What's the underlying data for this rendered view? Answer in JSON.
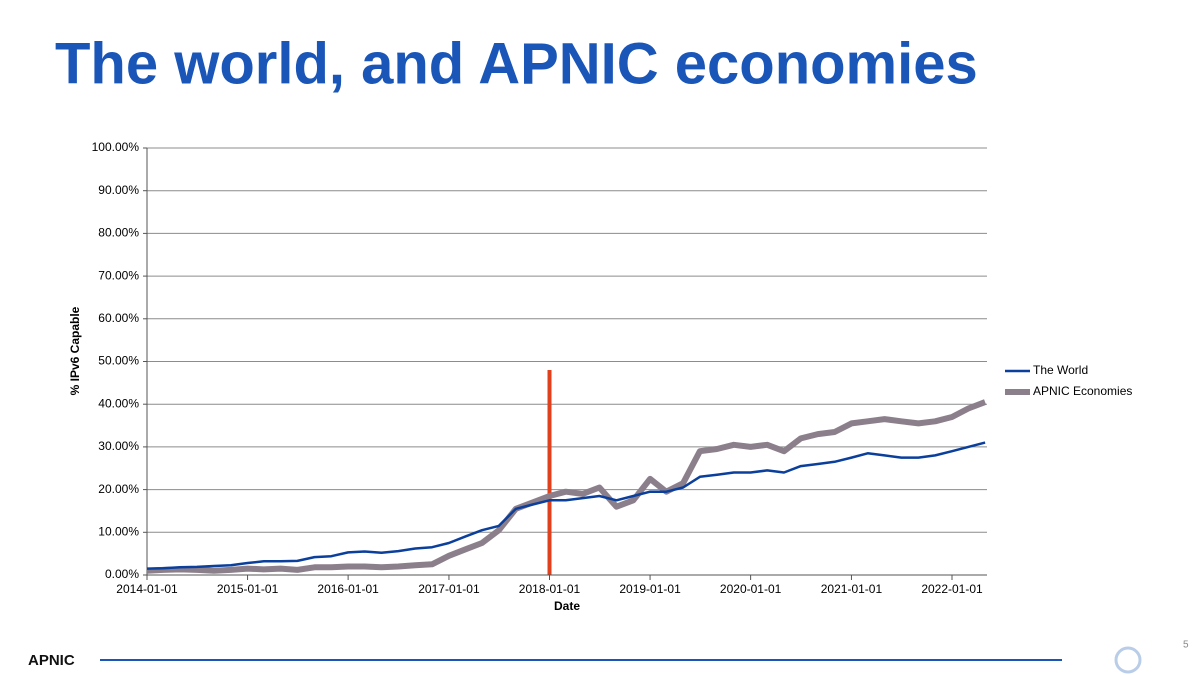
{
  "page_title": "The world, and APNIC economies",
  "logo": "APNIC",
  "page_number": "5",
  "chart_data": {
    "type": "line",
    "x_label": "Date",
    "y_label": "% IPv6 Capable",
    "x": [
      "2014-01-01",
      "2014-03-01",
      "2014-05-01",
      "2014-07-01",
      "2014-09-01",
      "2014-11-01",
      "2015-01-01",
      "2015-03-01",
      "2015-05-01",
      "2015-07-01",
      "2015-09-01",
      "2015-11-01",
      "2016-01-01",
      "2016-03-01",
      "2016-05-01",
      "2016-07-01",
      "2016-09-01",
      "2016-11-01",
      "2017-01-01",
      "2017-03-01",
      "2017-05-01",
      "2017-07-01",
      "2017-09-01",
      "2017-11-01",
      "2018-01-01",
      "2018-03-01",
      "2018-05-01",
      "2018-07-01",
      "2018-09-01",
      "2018-11-01",
      "2019-01-01",
      "2019-03-01",
      "2019-05-01",
      "2019-07-01",
      "2019-09-01",
      "2019-11-01",
      "2020-01-01",
      "2020-03-01",
      "2020-05-01",
      "2020-07-01",
      "2020-09-01",
      "2020-11-01",
      "2021-01-01",
      "2021-03-01",
      "2021-05-01",
      "2021-07-01",
      "2021-09-01",
      "2021-11-01",
      "2022-01-01",
      "2022-03-01",
      "2022-05-01"
    ],
    "series": [
      {
        "name": "The World",
        "color": "#0b3f9c",
        "width": 2.5,
        "values": [
          1.5,
          1.6,
          1.8,
          1.9,
          2.1,
          2.3,
          2.8,
          3.2,
          3.2,
          3.3,
          4.2,
          4.4,
          5.3,
          5.5,
          5.2,
          5.6,
          6.2,
          6.5,
          7.5,
          9.0,
          10.5,
          11.5,
          15.5,
          16.5,
          17.5,
          17.5,
          18.0,
          18.5,
          17.5,
          18.5,
          19.5,
          19.5,
          20.5,
          23.0,
          23.5,
          24.0,
          24.0,
          24.5,
          24.0,
          25.5,
          26.0,
          26.5,
          27.5,
          28.5,
          28.0,
          27.5,
          27.5,
          28.0,
          29.0,
          30.0,
          31.0
        ]
      },
      {
        "name": "APNIC Economies",
        "color": "#8c7f8c",
        "width": 6,
        "values": [
          1.0,
          1.2,
          1.3,
          1.2,
          1.0,
          1.2,
          1.5,
          1.3,
          1.5,
          1.2,
          1.8,
          1.8,
          2.0,
          2.0,
          1.8,
          2.0,
          2.3,
          2.5,
          4.5,
          6.0,
          7.5,
          10.5,
          15.5,
          17.0,
          18.5,
          19.5,
          19.0,
          20.5,
          16.0,
          17.5,
          22.5,
          19.5,
          21.5,
          29.0,
          29.5,
          30.5,
          30.0,
          30.5,
          29.0,
          32.0,
          33.0,
          33.5,
          35.5,
          36.0,
          36.5,
          36.0,
          35.5,
          36.0,
          37.0,
          39.0,
          40.5
        ]
      }
    ],
    "xlim": [
      "2014-01-01",
      "2022-05-08"
    ],
    "xticks": [
      "2014-01-01",
      "2015-01-01",
      "2016-01-01",
      "2017-01-01",
      "2018-01-01",
      "2019-01-01",
      "2020-01-01",
      "2021-01-01",
      "2022-01-01"
    ],
    "ylim": [
      0,
      100
    ],
    "yticks": [
      {
        "value": 0,
        "label": "0.00%"
      },
      {
        "value": 10,
        "label": "10.00%"
      },
      {
        "value": 20,
        "label": "20.00%"
      },
      {
        "value": 30,
        "label": "30.00%"
      },
      {
        "value": 40,
        "label": "40.00%"
      },
      {
        "value": 50,
        "label": "50.00%"
      },
      {
        "value": 60,
        "label": "60.00%"
      },
      {
        "value": 70,
        "label": "70.00%"
      },
      {
        "value": 80,
        "label": "80.00%"
      },
      {
        "value": 90,
        "label": "90.00%"
      },
      {
        "value": 100,
        "label": "100.00%"
      }
    ],
    "grid": true,
    "legend": "right",
    "marker_line": {
      "x": "2018-01-01",
      "y": 48,
      "color": "#e0401c"
    }
  }
}
